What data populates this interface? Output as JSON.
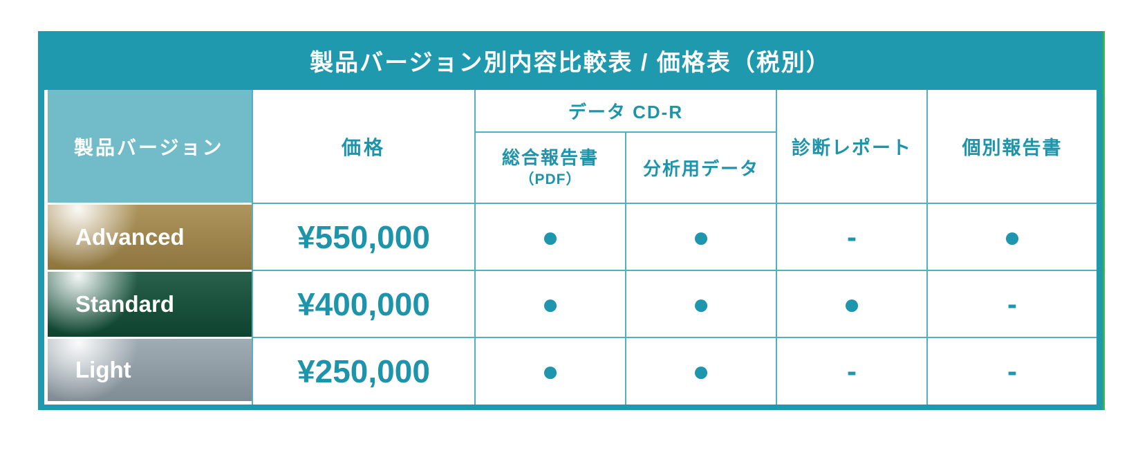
{
  "palette": {
    "teal": "#1E99AE",
    "light_teal": "#72BCC9",
    "grid_line": "#4FB0C1",
    "header_text": "#1E94AB",
    "gold": "#A5894A",
    "dark_green": "#0F4E37",
    "gray": "#95A3AC",
    "dot": "#1E96AD",
    "edge_green_line": "#3CB44A"
  },
  "table": {
    "title": "製品バージョン別内容比較表 / 価格表（税別）",
    "headers": {
      "version": "製品バージョン",
      "price": "価格",
      "cdr_group": "データ CD-R",
      "cdr_sub1": "総合報告書",
      "cdr_sub1_note": "（PDF）",
      "cdr_sub2": "分析用データ",
      "diagnosis": "診断レポート",
      "individual": "個別報告書"
    },
    "symbols": {
      "included": "●",
      "not_included": "-"
    },
    "rows": [
      {
        "name": "Advanced",
        "price": "¥550,000",
        "color": "#A5894A",
        "features": [
          "●",
          "●",
          "-",
          "●"
        ]
      },
      {
        "name": "Standard",
        "price": "¥400,000",
        "color": "#0F4E37",
        "features": [
          "●",
          "●",
          "●",
          "-"
        ]
      },
      {
        "name": "Light",
        "price": "¥250,000",
        "color": "#95A3AC",
        "features": [
          "●",
          "●",
          "-",
          "-"
        ]
      }
    ]
  }
}
